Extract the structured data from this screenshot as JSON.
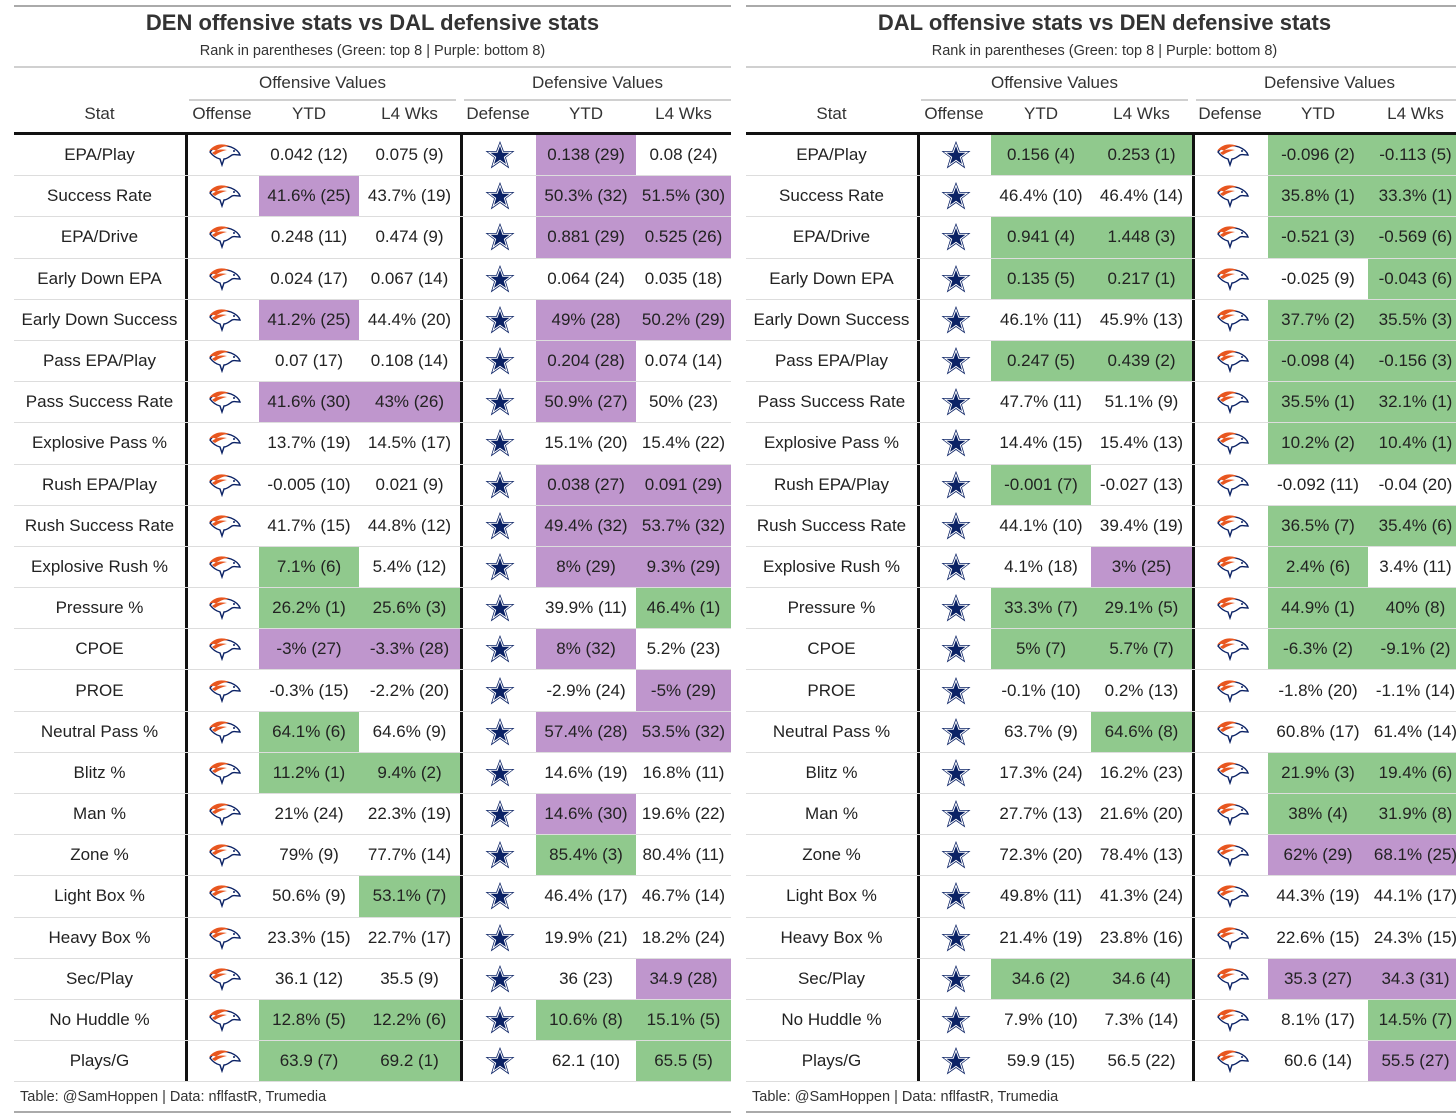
{
  "colors": {
    "green": "#90c98d",
    "purple": "#bf96cd"
  },
  "icons": {
    "broncos": "broncos-logo-icon",
    "cowboys": "cowboys-star-icon"
  },
  "tables": [
    {
      "title": "DEN offensive stats vs DAL defensive stats",
      "subtitle": "Rank in parentheses (Green: top 8 | Purple: bottom 8)",
      "group_offense": "Offensive Values",
      "group_defense": "Defensive Values",
      "columns": [
        "Stat",
        "Offense",
        "YTD",
        "L4 Wks",
        "Defense",
        "YTD",
        "L4 Wks"
      ],
      "offense_icon": "broncos",
      "defense_icon": "cowboys",
      "footer": "Table: @SamHoppen | Data: nflfastR, Trumedia",
      "rows": [
        {
          "stat": "EPA/Play",
          "cells": [
            [
              "0.042 (12)",
              ""
            ],
            [
              "0.075 (9)",
              ""
            ],
            [
              "0.138 (29)",
              "p"
            ],
            [
              "0.08 (24)",
              ""
            ]
          ]
        },
        {
          "stat": "Success Rate",
          "cells": [
            [
              "41.6% (25)",
              "p"
            ],
            [
              "43.7% (19)",
              ""
            ],
            [
              "50.3% (32)",
              "p"
            ],
            [
              "51.5% (30)",
              "p"
            ]
          ]
        },
        {
          "stat": "EPA/Drive",
          "cells": [
            [
              "0.248 (11)",
              ""
            ],
            [
              "0.474 (9)",
              ""
            ],
            [
              "0.881 (29)",
              "p"
            ],
            [
              "0.525 (26)",
              "p"
            ]
          ]
        },
        {
          "stat": "Early Down EPA",
          "cells": [
            [
              "0.024 (17)",
              ""
            ],
            [
              "0.067 (14)",
              ""
            ],
            [
              "0.064 (24)",
              ""
            ],
            [
              "0.035 (18)",
              ""
            ]
          ]
        },
        {
          "stat": "Early Down Success",
          "cells": [
            [
              "41.2% (25)",
              "p"
            ],
            [
              "44.4% (20)",
              ""
            ],
            [
              "49% (28)",
              "p"
            ],
            [
              "50.2% (29)",
              "p"
            ]
          ]
        },
        {
          "stat": "Pass EPA/Play",
          "cells": [
            [
              "0.07 (17)",
              ""
            ],
            [
              "0.108 (14)",
              ""
            ],
            [
              "0.204 (28)",
              "p"
            ],
            [
              "0.074 (14)",
              ""
            ]
          ]
        },
        {
          "stat": "Pass Success Rate",
          "cells": [
            [
              "41.6% (30)",
              "p"
            ],
            [
              "43% (26)",
              "p"
            ],
            [
              "50.9% (27)",
              "p"
            ],
            [
              "50% (23)",
              ""
            ]
          ]
        },
        {
          "stat": "Explosive Pass %",
          "cells": [
            [
              "13.7% (19)",
              ""
            ],
            [
              "14.5% (17)",
              ""
            ],
            [
              "15.1% (20)",
              ""
            ],
            [
              "15.4% (22)",
              ""
            ]
          ]
        },
        {
          "stat": "Rush EPA/Play",
          "cells": [
            [
              "-0.005 (10)",
              ""
            ],
            [
              "0.021 (9)",
              ""
            ],
            [
              "0.038 (27)",
              "p"
            ],
            [
              "0.091 (29)",
              "p"
            ]
          ]
        },
        {
          "stat": "Rush Success Rate",
          "cells": [
            [
              "41.7% (15)",
              ""
            ],
            [
              "44.8% (12)",
              ""
            ],
            [
              "49.4% (32)",
              "p"
            ],
            [
              "53.7% (32)",
              "p"
            ]
          ]
        },
        {
          "stat": "Explosive Rush %",
          "cells": [
            [
              "7.1% (6)",
              "g"
            ],
            [
              "5.4% (12)",
              ""
            ],
            [
              "8% (29)",
              "p"
            ],
            [
              "9.3% (29)",
              "p"
            ]
          ]
        },
        {
          "stat": "Pressure %",
          "cells": [
            [
              "26.2% (1)",
              "g"
            ],
            [
              "25.6% (3)",
              "g"
            ],
            [
              "39.9% (11)",
              ""
            ],
            [
              "46.4% (1)",
              "g"
            ]
          ]
        },
        {
          "stat": "CPOE",
          "cells": [
            [
              "-3% (27)",
              "p"
            ],
            [
              "-3.3% (28)",
              "p"
            ],
            [
              "8% (32)",
              "p"
            ],
            [
              "5.2% (23)",
              ""
            ]
          ]
        },
        {
          "stat": "PROE",
          "cells": [
            [
              "-0.3% (15)",
              ""
            ],
            [
              "-2.2% (20)",
              ""
            ],
            [
              "-2.9% (24)",
              ""
            ],
            [
              "-5% (29)",
              "p"
            ]
          ]
        },
        {
          "stat": "Neutral Pass %",
          "cells": [
            [
              "64.1% (6)",
              "g"
            ],
            [
              "64.6% (9)",
              ""
            ],
            [
              "57.4% (28)",
              "p"
            ],
            [
              "53.5% (32)",
              "p"
            ]
          ]
        },
        {
          "stat": "Blitz %",
          "cells": [
            [
              "11.2% (1)",
              "g"
            ],
            [
              "9.4% (2)",
              "g"
            ],
            [
              "14.6% (19)",
              ""
            ],
            [
              "16.8% (11)",
              ""
            ]
          ]
        },
        {
          "stat": "Man %",
          "cells": [
            [
              "21% (24)",
              ""
            ],
            [
              "22.3% (19)",
              ""
            ],
            [
              "14.6% (30)",
              "p"
            ],
            [
              "19.6% (22)",
              ""
            ]
          ]
        },
        {
          "stat": "Zone %",
          "cells": [
            [
              "79% (9)",
              ""
            ],
            [
              "77.7% (14)",
              ""
            ],
            [
              "85.4% (3)",
              "g"
            ],
            [
              "80.4% (11)",
              ""
            ]
          ]
        },
        {
          "stat": "Light Box %",
          "cells": [
            [
              "50.6% (9)",
              ""
            ],
            [
              "53.1% (7)",
              "g"
            ],
            [
              "46.4% (17)",
              ""
            ],
            [
              "46.7% (14)",
              ""
            ]
          ]
        },
        {
          "stat": "Heavy Box %",
          "cells": [
            [
              "23.3% (15)",
              ""
            ],
            [
              "22.7% (17)",
              ""
            ],
            [
              "19.9% (21)",
              ""
            ],
            [
              "18.2% (24)",
              ""
            ]
          ]
        },
        {
          "stat": "Sec/Play",
          "cells": [
            [
              "36.1 (12)",
              ""
            ],
            [
              "35.5 (9)",
              ""
            ],
            [
              "36 (23)",
              ""
            ],
            [
              "34.9 (28)",
              "p"
            ]
          ]
        },
        {
          "stat": "No Huddle %",
          "cells": [
            [
              "12.8% (5)",
              "g"
            ],
            [
              "12.2% (6)",
              "g"
            ],
            [
              "10.6% (8)",
              "g"
            ],
            [
              "15.1% (5)",
              "g"
            ]
          ]
        },
        {
          "stat": "Plays/G",
          "cells": [
            [
              "63.9 (7)",
              "g"
            ],
            [
              "69.2 (1)",
              "g"
            ],
            [
              "62.1 (10)",
              ""
            ],
            [
              "65.5 (5)",
              "g"
            ]
          ]
        }
      ]
    },
    {
      "title": "DAL offensive stats vs DEN defensive stats",
      "subtitle": "Rank in parentheses (Green: top 8 | Purple: bottom 8)",
      "group_offense": "Offensive Values",
      "group_defense": "Defensive Values",
      "columns": [
        "Stat",
        "Offense",
        "YTD",
        "L4 Wks",
        "Defense",
        "YTD",
        "L4 Wks"
      ],
      "offense_icon": "cowboys",
      "defense_icon": "broncos",
      "footer": "Table: @SamHoppen | Data: nflfastR, Trumedia",
      "rows": [
        {
          "stat": "EPA/Play",
          "cells": [
            [
              "0.156 (4)",
              "g"
            ],
            [
              "0.253 (1)",
              "g"
            ],
            [
              "-0.096 (2)",
              "g"
            ],
            [
              "-0.113 (5)",
              "g"
            ]
          ]
        },
        {
          "stat": "Success Rate",
          "cells": [
            [
              "46.4% (10)",
              ""
            ],
            [
              "46.4% (14)",
              ""
            ],
            [
              "35.8% (1)",
              "g"
            ],
            [
              "33.3% (1)",
              "g"
            ]
          ]
        },
        {
          "stat": "EPA/Drive",
          "cells": [
            [
              "0.941 (4)",
              "g"
            ],
            [
              "1.448 (3)",
              "g"
            ],
            [
              "-0.521 (3)",
              "g"
            ],
            [
              "-0.569 (6)",
              "g"
            ]
          ]
        },
        {
          "stat": "Early Down EPA",
          "cells": [
            [
              "0.135 (5)",
              "g"
            ],
            [
              "0.217 (1)",
              "g"
            ],
            [
              "-0.025 (9)",
              ""
            ],
            [
              "-0.043 (6)",
              "g"
            ]
          ]
        },
        {
          "stat": "Early Down Success",
          "cells": [
            [
              "46.1% (11)",
              ""
            ],
            [
              "45.9% (13)",
              ""
            ],
            [
              "37.7% (2)",
              "g"
            ],
            [
              "35.5% (3)",
              "g"
            ]
          ]
        },
        {
          "stat": "Pass EPA/Play",
          "cells": [
            [
              "0.247 (5)",
              "g"
            ],
            [
              "0.439 (2)",
              "g"
            ],
            [
              "-0.098 (4)",
              "g"
            ],
            [
              "-0.156 (3)",
              "g"
            ]
          ]
        },
        {
          "stat": "Pass Success Rate",
          "cells": [
            [
              "47.7% (11)",
              ""
            ],
            [
              "51.1% (9)",
              ""
            ],
            [
              "35.5% (1)",
              "g"
            ],
            [
              "32.1% (1)",
              "g"
            ]
          ]
        },
        {
          "stat": "Explosive Pass %",
          "cells": [
            [
              "14.4% (15)",
              ""
            ],
            [
              "15.4% (13)",
              ""
            ],
            [
              "10.2% (2)",
              "g"
            ],
            [
              "10.4% (1)",
              "g"
            ]
          ]
        },
        {
          "stat": "Rush EPA/Play",
          "cells": [
            [
              "-0.001 (7)",
              "g"
            ],
            [
              "-0.027 (13)",
              ""
            ],
            [
              "-0.092 (11)",
              ""
            ],
            [
              "-0.04 (20)",
              ""
            ]
          ]
        },
        {
          "stat": "Rush Success Rate",
          "cells": [
            [
              "44.1% (10)",
              ""
            ],
            [
              "39.4% (19)",
              ""
            ],
            [
              "36.5% (7)",
              "g"
            ],
            [
              "35.4% (6)",
              "g"
            ]
          ]
        },
        {
          "stat": "Explosive Rush %",
          "cells": [
            [
              "4.1% (18)",
              ""
            ],
            [
              "3% (25)",
              "p"
            ],
            [
              "2.4% (6)",
              "g"
            ],
            [
              "3.4% (11)",
              ""
            ]
          ]
        },
        {
          "stat": "Pressure %",
          "cells": [
            [
              "33.3% (7)",
              "g"
            ],
            [
              "29.1% (5)",
              "g"
            ],
            [
              "44.9% (1)",
              "g"
            ],
            [
              "40% (8)",
              "g"
            ]
          ]
        },
        {
          "stat": "CPOE",
          "cells": [
            [
              "5% (7)",
              "g"
            ],
            [
              "5.7% (7)",
              "g"
            ],
            [
              "-6.3% (2)",
              "g"
            ],
            [
              "-9.1% (2)",
              "g"
            ]
          ]
        },
        {
          "stat": "PROE",
          "cells": [
            [
              "-0.1% (10)",
              ""
            ],
            [
              "0.2% (13)",
              ""
            ],
            [
              "-1.8% (20)",
              ""
            ],
            [
              "-1.1% (14)",
              ""
            ]
          ]
        },
        {
          "stat": "Neutral Pass %",
          "cells": [
            [
              "63.7% (9)",
              ""
            ],
            [
              "64.6% (8)",
              "g"
            ],
            [
              "60.8% (17)",
              ""
            ],
            [
              "61.4% (14)",
              ""
            ]
          ]
        },
        {
          "stat": "Blitz %",
          "cells": [
            [
              "17.3% (24)",
              ""
            ],
            [
              "16.2% (23)",
              ""
            ],
            [
              "21.9% (3)",
              "g"
            ],
            [
              "19.4% (6)",
              "g"
            ]
          ]
        },
        {
          "stat": "Man %",
          "cells": [
            [
              "27.7% (13)",
              ""
            ],
            [
              "21.6% (20)",
              ""
            ],
            [
              "38% (4)",
              "g"
            ],
            [
              "31.9% (8)",
              "g"
            ]
          ]
        },
        {
          "stat": "Zone %",
          "cells": [
            [
              "72.3% (20)",
              ""
            ],
            [
              "78.4% (13)",
              ""
            ],
            [
              "62% (29)",
              "p"
            ],
            [
              "68.1% (25)",
              "p"
            ]
          ]
        },
        {
          "stat": "Light Box %",
          "cells": [
            [
              "49.8% (11)",
              ""
            ],
            [
              "41.3% (24)",
              ""
            ],
            [
              "44.3% (19)",
              ""
            ],
            [
              "44.1% (17)",
              ""
            ]
          ]
        },
        {
          "stat": "Heavy Box %",
          "cells": [
            [
              "21.4% (19)",
              ""
            ],
            [
              "23.8% (16)",
              ""
            ],
            [
              "22.6% (15)",
              ""
            ],
            [
              "24.3% (15)",
              ""
            ]
          ]
        },
        {
          "stat": "Sec/Play",
          "cells": [
            [
              "34.6 (2)",
              "g"
            ],
            [
              "34.6 (4)",
              "g"
            ],
            [
              "35.3 (27)",
              "p"
            ],
            [
              "34.3 (31)",
              "p"
            ]
          ]
        },
        {
          "stat": "No Huddle %",
          "cells": [
            [
              "7.9% (10)",
              ""
            ],
            [
              "7.3% (14)",
              ""
            ],
            [
              "8.1% (17)",
              ""
            ],
            [
              "14.5% (7)",
              "g"
            ]
          ]
        },
        {
          "stat": "Plays/G",
          "cells": [
            [
              "59.9 (15)",
              ""
            ],
            [
              "56.5 (22)",
              ""
            ],
            [
              "60.6 (14)",
              ""
            ],
            [
              "55.5 (27)",
              "p"
            ]
          ]
        }
      ]
    }
  ]
}
